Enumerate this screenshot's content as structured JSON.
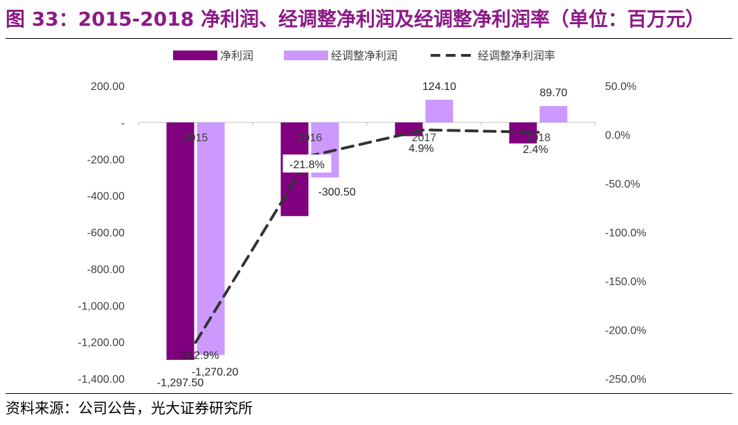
{
  "figure": {
    "title": "图 33：2015-2018 净利润、经调整净利润及经调整净利润率（单位：百万元）",
    "source": "资料来源：公司公告，光大证券研究所"
  },
  "colors": {
    "title": "#8B1A86",
    "net_profit": "#80007F",
    "adj_net_profit": "#CC99FF",
    "adj_margin": "#333333",
    "axis_text": "#404040"
  },
  "chart_data": {
    "type": "bar",
    "categories": [
      "2015",
      "2016",
      "2017",
      "2018"
    ],
    "series": [
      {
        "name": "净利润",
        "kind": "bar",
        "axis": "left",
        "values": [
          -1297.5,
          -512,
          -75,
          -115
        ]
      },
      {
        "name": "经调整净利润",
        "kind": "bar",
        "axis": "left",
        "values": [
          -1270.2,
          -300.5,
          124.1,
          89.7
        ]
      },
      {
        "name": "经调整净利润率",
        "kind": "line",
        "axis": "right",
        "style": "dashed",
        "values": [
          -212.9,
          -21.8,
          4.9,
          2.4
        ]
      }
    ],
    "data_labels": {
      "net_profit": [
        "-1,297.50",
        "",
        "",
        ""
      ],
      "adj_net_profit": [
        "-1,270.20",
        "-300.50",
        "124.10",
        "89.70"
      ],
      "adj_margin": [
        "-212.9%",
        "-21.8%",
        "4.9%",
        "2.4%"
      ]
    },
    "y_left": {
      "ylim": [
        -1400,
        200
      ],
      "ticks": [
        200,
        0,
        -200,
        -400,
        -600,
        -800,
        -1000,
        -1200,
        -1400
      ],
      "tick_labels": [
        "200.00",
        "-",
        "-200.00",
        "-400.00",
        "-600.00",
        "-800.00",
        "-1,000.00",
        "-1,200.00",
        "-1,400.00"
      ]
    },
    "y_right": {
      "ylim": [
        -250,
        50
      ],
      "ticks": [
        50,
        0,
        -50,
        -100,
        -150,
        -200,
        -250
      ],
      "tick_labels": [
        "50.0%",
        "0.0%",
        "-50.0%",
        "-100.0%",
        "-150.0%",
        "-200.0%",
        "-250.0%"
      ]
    },
    "grid": false,
    "legend": "top"
  }
}
